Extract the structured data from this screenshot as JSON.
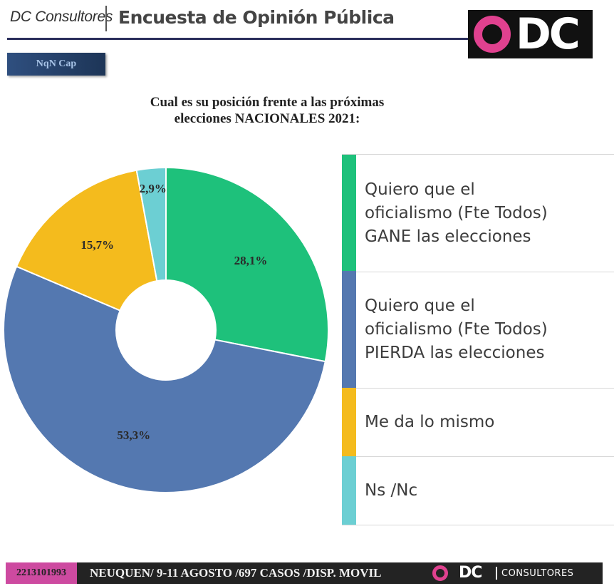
{
  "header": {
    "brand": "DC Consultores",
    "title": "Encuesta de Opinión Pública",
    "logo_text": "DC",
    "logo_ring_color": "#e0418f"
  },
  "tag": {
    "label": "NqN Cap"
  },
  "chart_data": {
    "type": "pie",
    "title": "Cual es su posición frente a las próximas elecciones NACIONALES 2021:",
    "title_lines": [
      "Cual es su posición frente a las próximas",
      "elecciones NACIONALES 2021:"
    ],
    "legend_position": "right",
    "slices": [
      {
        "label": "Quiero que el oficialismo (Fte Todos) GANE las elecciones",
        "lines": [
          "Quiero que el",
          "oficialismo (Fte Todos)",
          "GANE las elecciones"
        ],
        "value": 28.1,
        "display": "28,1%",
        "color": "#1ec17b"
      },
      {
        "label": "Quiero que el oficialismo (Fte Todos) PIERDA las elecciones",
        "lines": [
          "Quiero que el",
          "oficialismo (Fte Todos)",
          "PIERDA las elecciones"
        ],
        "value": 53.3,
        "display": "53,3%",
        "color": "#5478b0"
      },
      {
        "label": "Me da lo mismo",
        "lines": [
          "Me da lo mismo"
        ],
        "value": 15.7,
        "display": "15,7%",
        "color": "#f4bb1d"
      },
      {
        "label": "Ns /Nc",
        "lines": [
          "Ns /Nc"
        ],
        "value": 2.9,
        "display": "2,9%",
        "color": "#6ccfd3"
      }
    ]
  },
  "footer": {
    "phone": "2213101993",
    "info": "NEUQUEN/ 9-11 AGOSTO /697 CASOS  /DISP. MOVIL",
    "dc": "DC",
    "consultores": "CONSULTORES"
  }
}
